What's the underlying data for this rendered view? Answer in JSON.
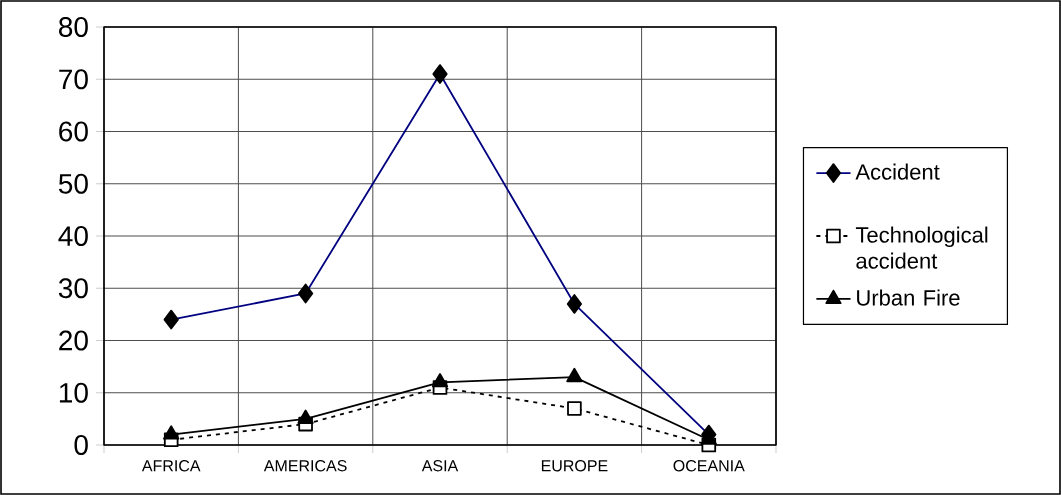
{
  "chart_data": {
    "type": "line",
    "categories": [
      "AFRICA",
      "AMERICAS",
      "ASIA",
      "EUROPE",
      "OCEANIA"
    ],
    "series": [
      {
        "name": "Accident",
        "color": "#000080",
        "marker": "diamond",
        "line_style": "solid",
        "values": [
          24,
          29,
          71,
          27,
          2
        ]
      },
      {
        "name": "Technological accident",
        "color": "#000000",
        "marker": "square",
        "line_style": "dotted",
        "values": [
          1,
          4,
          11,
          7,
          0
        ]
      },
      {
        "name": "Urban Fire",
        "color": "#000000",
        "marker": "triangle",
        "line_style": "solid",
        "values": [
          2,
          5,
          12,
          13,
          1
        ]
      }
    ],
    "ylim": [
      0,
      80
    ],
    "yticks": [
      0,
      10,
      20,
      30,
      40,
      50,
      60,
      70,
      80
    ],
    "grid": true,
    "legend": "right"
  }
}
